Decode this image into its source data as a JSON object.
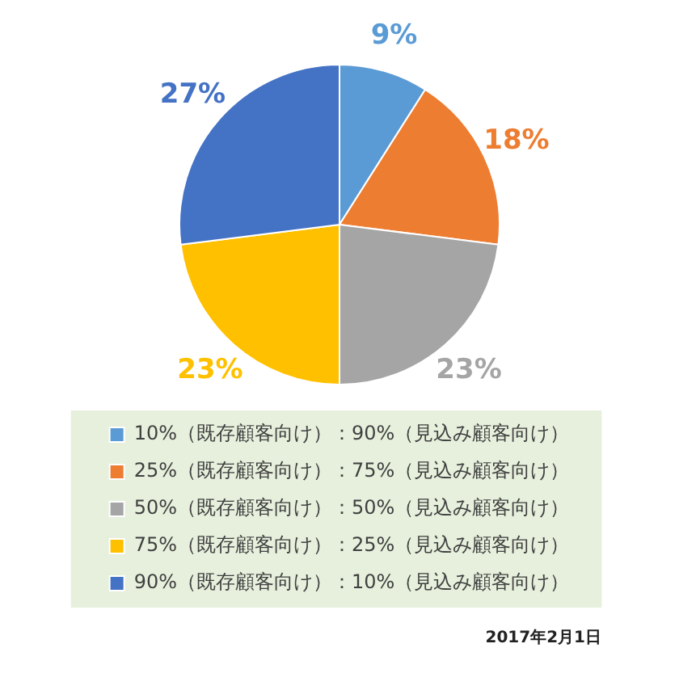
{
  "chart_data": {
    "type": "pie",
    "categories": [
      "10%（既存顧客向け）：90%（見込み顧客向け）",
      "25%（既存顧客向け）：75%（見込み顧客向け）",
      "50%（既存顧客向け）：50%（見込み顧客向け）",
      "75%（既存顧客向け）：25%（見込み顧客向け）",
      "90%（既存顧客向け）：10%（見込み顧客向け）"
    ],
    "values": [
      9,
      18,
      23,
      23,
      27
    ],
    "colors": [
      "#5b9bd5",
      "#ed7d31",
      "#a5a5a5",
      "#ffc000",
      "#4472c4"
    ],
    "value_labels": [
      "9%",
      "18%",
      "23%",
      "23%",
      "27%"
    ],
    "legend": "bottom",
    "annotations": [
      "2017年2月1日"
    ]
  }
}
